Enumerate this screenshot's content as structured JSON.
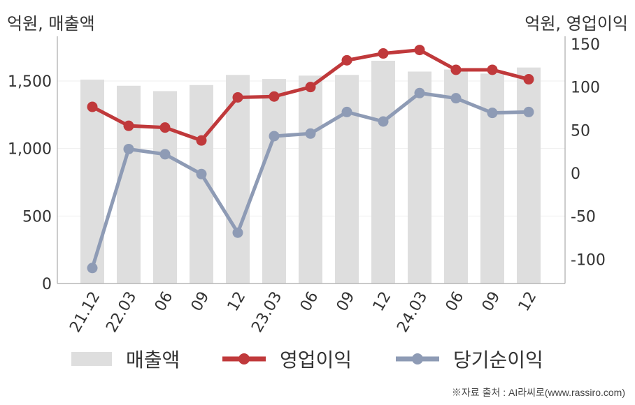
{
  "axis_titles": {
    "left": "억원, 매출액",
    "right": "억원, 영업이익"
  },
  "source": "※자료 출처 : AI라씨로(www.rassiro.com)",
  "colors": {
    "revenue": "#dedede",
    "operating_profit": "#c0393b",
    "net_income": "#8e9bb5",
    "axis": "#aaaaaa",
    "grid": "#eeeeee",
    "text": "#333333"
  },
  "chart_data": {
    "type": "bar+line",
    "categories": [
      "21.12",
      "22.03",
      "06",
      "09",
      "12",
      "23.03",
      "06",
      "09",
      "12",
      "24.03",
      "06",
      "09",
      "12"
    ],
    "y_left": {
      "label": "억원, 매출액",
      "range": [
        0,
        1800
      ],
      "ticks": [
        0,
        500,
        1000,
        1500
      ],
      "tick_labels": [
        "0",
        "500",
        "1,000",
        "1,500"
      ]
    },
    "y_right": {
      "label": "억원, 영업이익",
      "range": [
        -128,
        154
      ],
      "ticks": [
        -100,
        -50,
        0,
        50,
        100,
        150
      ],
      "tick_labels": [
        "-100",
        "-50",
        "0",
        "50",
        "100",
        "150"
      ]
    },
    "grid": true,
    "legend_position": "bottom",
    "series": [
      {
        "name": "매출액",
        "type": "bar",
        "axis": "left",
        "values": [
          1510,
          1465,
          1425,
          1470,
          1545,
          1515,
          1540,
          1545,
          1650,
          1570,
          1585,
          1555,
          1600
        ]
      },
      {
        "name": "영업이익",
        "type": "line",
        "axis": "right",
        "values": [
          77,
          55,
          53,
          38,
          88,
          89,
          100,
          131,
          139,
          143,
          120,
          120,
          109
        ]
      },
      {
        "name": "당기순이익",
        "type": "line",
        "axis": "right",
        "values": [
          -110,
          28,
          22,
          -1,
          -69,
          43,
          46,
          71,
          60,
          93,
          87,
          70,
          71
        ]
      }
    ]
  }
}
